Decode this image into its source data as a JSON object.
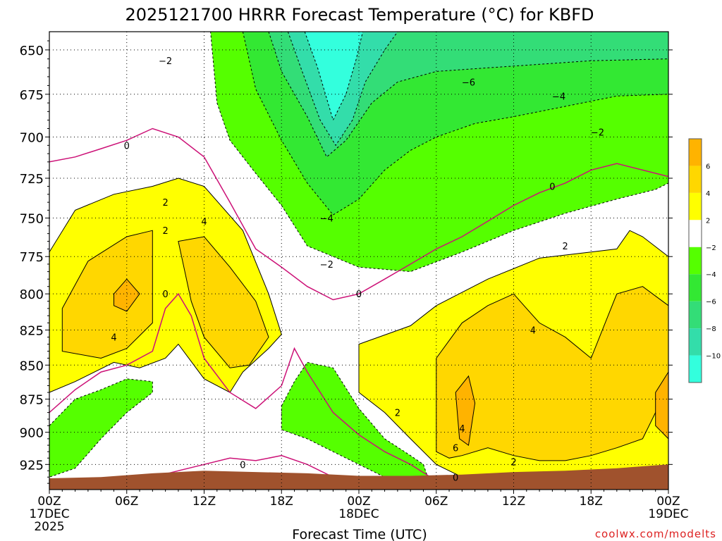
{
  "chart_data": {
    "type": "heatmap",
    "title": "2025121700 HRRR Forecast Temperature (°C) for KBFD",
    "xlabel": "Forecast Time (UTC)",
    "ylabel": "",
    "credit": "coolwx.com/modelts",
    "y_axis": {
      "scale": "log-pressure",
      "inverted": true,
      "ticks": [
        650,
        675,
        700,
        725,
        750,
        775,
        800,
        825,
        850,
        875,
        900,
        925
      ],
      "ylim": [
        640,
        945
      ]
    },
    "x_axis": {
      "xlim_hours": [
        0,
        48
      ],
      "ticks": [
        {
          "hour": 0,
          "label": "00Z",
          "sub1": "17DEC",
          "sub2": "2025"
        },
        {
          "hour": 6,
          "label": "06Z",
          "sub1": "",
          "sub2": ""
        },
        {
          "hour": 12,
          "label": "12Z",
          "sub1": "",
          "sub2": ""
        },
        {
          "hour": 18,
          "label": "18Z",
          "sub1": "",
          "sub2": ""
        },
        {
          "hour": 24,
          "label": "00Z",
          "sub1": "18DEC",
          "sub2": ""
        },
        {
          "hour": 30,
          "label": "06Z",
          "sub1": "",
          "sub2": ""
        },
        {
          "hour": 36,
          "label": "12Z",
          "sub1": "",
          "sub2": ""
        },
        {
          "hour": 42,
          "label": "18Z",
          "sub1": "",
          "sub2": ""
        },
        {
          "hour": 48,
          "label": "00Z",
          "sub1": "19DEC",
          "sub2": ""
        }
      ]
    },
    "grid": true,
    "legend": {
      "placement": "right",
      "labels": [
        "6",
        "4",
        "2",
        "−2",
        "−4",
        "−6",
        "−8",
        "−10"
      ],
      "bins": [
        {
          "range": [
            6,
            8
          ],
          "color": "#ffb300"
        },
        {
          "range": [
            4,
            6
          ],
          "color": "#ffd700"
        },
        {
          "range": [
            2,
            4
          ],
          "color": "#ffff00"
        },
        {
          "range": [
            -2,
            2
          ],
          "color": "#ffffff"
        },
        {
          "range": [
            -4,
            -2
          ],
          "color": "#55ff00"
        },
        {
          "range": [
            -6,
            -4
          ],
          "color": "#33e833"
        },
        {
          "range": [
            -8,
            -6
          ],
          "color": "#33dd77"
        },
        {
          "range": [
            -10,
            -8
          ],
          "color": "#33ddaa"
        },
        {
          "range": [
            -12,
            -10
          ],
          "color": "#33ffdd"
        }
      ]
    },
    "ground_color": "#a0522d",
    "regions": [
      {
        "level": -2,
        "color": "#55ff00",
        "points": [
          [
            0.0,
            640
          ],
          [
            12.5,
            640
          ],
          [
            13,
            680
          ],
          [
            14,
            702
          ],
          [
            16,
            722
          ],
          [
            18,
            742
          ],
          [
            20,
            768
          ],
          [
            24,
            782
          ],
          [
            28,
            785
          ],
          [
            32,
            772
          ],
          [
            36,
            758
          ],
          [
            40,
            747
          ],
          [
            44,
            738
          ],
          [
            47,
            732
          ],
          [
            48,
            728
          ],
          [
            48,
            640
          ]
        ]
      },
      {
        "level": -4,
        "color": "#33e833",
        "points": [
          [
            15,
            640
          ],
          [
            16,
            672
          ],
          [
            18,
            702
          ],
          [
            20,
            728
          ],
          [
            22,
            748
          ],
          [
            24,
            738
          ],
          [
            26,
            720
          ],
          [
            28,
            708
          ],
          [
            30,
            700
          ],
          [
            33,
            692
          ],
          [
            36,
            688
          ],
          [
            40,
            682
          ],
          [
            44,
            676
          ],
          [
            48,
            675
          ],
          [
            48,
            640
          ]
        ]
      },
      {
        "level": -6,
        "color": "#33dd77",
        "points": [
          [
            17,
            640
          ],
          [
            18,
            662
          ],
          [
            20,
            688
          ],
          [
            21.5,
            712
          ],
          [
            23,
            702
          ],
          [
            25,
            680
          ],
          [
            27,
            668
          ],
          [
            30,
            662
          ],
          [
            34,
            660
          ],
          [
            38,
            658
          ],
          [
            42,
            656
          ],
          [
            48,
            655
          ],
          [
            48,
            640
          ]
        ]
      },
      {
        "level": -8,
        "color": "#33ddaa",
        "points": [
          [
            18.5,
            640
          ],
          [
            19.5,
            660
          ],
          [
            21,
            690
          ],
          [
            22.2,
            705
          ],
          [
            23.5,
            690
          ],
          [
            24.5,
            668
          ],
          [
            26,
            650
          ],
          [
            27,
            640
          ]
        ]
      },
      {
        "level": -10,
        "color": "#33ffdd",
        "points": [
          [
            19.8,
            640
          ],
          [
            20.8,
            660
          ],
          [
            22,
            690
          ],
          [
            23,
            675
          ],
          [
            23.8,
            655
          ],
          [
            24.3,
            640
          ]
        ]
      },
      {
        "level": 2,
        "color": "#ffff00",
        "points": [
          [
            0,
            772
          ],
          [
            2,
            745
          ],
          [
            5,
            735
          ],
          [
            8,
            730
          ],
          [
            10,
            725
          ],
          [
            12,
            730
          ],
          [
            15,
            758
          ],
          [
            17,
            800
          ],
          [
            18,
            828
          ],
          [
            17,
            838
          ],
          [
            15,
            855
          ],
          [
            14,
            870
          ],
          [
            12,
            860
          ],
          [
            10,
            835
          ],
          [
            9,
            845
          ],
          [
            7,
            852
          ],
          [
            5,
            848
          ],
          [
            2,
            862
          ],
          [
            0,
            870
          ]
        ]
      },
      {
        "level": 4,
        "color": "#ffd700",
        "points": [
          [
            1,
            810
          ],
          [
            3,
            778
          ],
          [
            6,
            762
          ],
          [
            8,
            758
          ],
          [
            8,
            820
          ],
          [
            6,
            838
          ],
          [
            4,
            845
          ],
          [
            1,
            840
          ]
        ]
      },
      {
        "level": 4,
        "color": "#ffd700",
        "points": [
          [
            10,
            765
          ],
          [
            12,
            762
          ],
          [
            14,
            782
          ],
          [
            16,
            805
          ],
          [
            17,
            830
          ],
          [
            15.5,
            850
          ],
          [
            14,
            852
          ],
          [
            12,
            830
          ],
          [
            11,
            805
          ]
        ]
      },
      {
        "level": 6,
        "color": "#ffb300",
        "points": [
          [
            5,
            800
          ],
          [
            6,
            790
          ],
          [
            7,
            800
          ],
          [
            6,
            812
          ],
          [
            5,
            808
          ]
        ]
      },
      {
        "level": 2,
        "color": "#ffff00",
        "points": [
          [
            24,
            835
          ],
          [
            28,
            822
          ],
          [
            30,
            808
          ],
          [
            34,
            790
          ],
          [
            38,
            776
          ],
          [
            42,
            772
          ],
          [
            44,
            770
          ],
          [
            45,
            758
          ],
          [
            46,
            762
          ],
          [
            48,
            775
          ],
          [
            48,
            945
          ],
          [
            44,
            945
          ],
          [
            40,
            940
          ],
          [
            36,
            938
          ],
          [
            32,
            935
          ],
          [
            30,
            925
          ],
          [
            28,
            905
          ],
          [
            26,
            885
          ],
          [
            24,
            870
          ]
        ]
      },
      {
        "level": 4,
        "color": "#ffd700",
        "points": [
          [
            30,
            845
          ],
          [
            32,
            820
          ],
          [
            34,
            808
          ],
          [
            36,
            800
          ],
          [
            37,
            810
          ],
          [
            38,
            820
          ],
          [
            40,
            830
          ],
          [
            42,
            845
          ],
          [
            44,
            800
          ],
          [
            46,
            795
          ],
          [
            48,
            808
          ],
          [
            48,
            870
          ],
          [
            47,
            885
          ],
          [
            46,
            905
          ],
          [
            44,
            912
          ],
          [
            42,
            918
          ],
          [
            40,
            922
          ],
          [
            38,
            922
          ],
          [
            36,
            918
          ],
          [
            34,
            912
          ],
          [
            32,
            918
          ],
          [
            31,
            920
          ],
          [
            30,
            915
          ]
        ]
      },
      {
        "level": 6,
        "color": "#ffb300",
        "points": [
          [
            31.5,
            870
          ],
          [
            32.5,
            858
          ],
          [
            33,
            878
          ],
          [
            32.5,
            910
          ],
          [
            31.8,
            905
          ]
        ]
      },
      {
        "level": 6,
        "color": "#ffb300",
        "points": [
          [
            47,
            870
          ],
          [
            48,
            855
          ],
          [
            48,
            905
          ],
          [
            47,
            895
          ]
        ]
      },
      {
        "level": 6,
        "color": "#ffb300",
        "points": [
          [
            41,
            940
          ],
          [
            42.5,
            932
          ],
          [
            43.5,
            940
          ]
        ]
      },
      {
        "level": -2,
        "color": "#55ff00",
        "points": [
          [
            0,
            895
          ],
          [
            2,
            875
          ],
          [
            4,
            868
          ],
          [
            6,
            860
          ],
          [
            8,
            862
          ],
          [
            8,
            870
          ],
          [
            6,
            885
          ],
          [
            4,
            905
          ],
          [
            2,
            928
          ],
          [
            0,
            935
          ]
        ]
      },
      {
        "level": -2,
        "color": "#55ff00",
        "points": [
          [
            18,
            880
          ],
          [
            19,
            862
          ],
          [
            20,
            848
          ],
          [
            22,
            852
          ],
          [
            24,
            882
          ],
          [
            26,
            905
          ],
          [
            28,
            918
          ],
          [
            29,
            925
          ],
          [
            29.5,
            940
          ],
          [
            28,
            942
          ],
          [
            26,
            935
          ],
          [
            24,
            925
          ],
          [
            22,
            915
          ],
          [
            20,
            905
          ],
          [
            18,
            898
          ]
        ]
      }
    ],
    "contours": [
      {
        "value": 0,
        "color": "#cc1177",
        "points": [
          [
            0,
            715
          ],
          [
            2,
            712
          ],
          [
            4,
            707
          ],
          [
            6,
            702
          ],
          [
            8,
            695
          ],
          [
            10,
            700
          ],
          [
            12,
            712
          ],
          [
            14,
            740
          ],
          [
            16,
            770
          ],
          [
            18,
            782
          ],
          [
            20,
            795
          ],
          [
            22,
            804
          ],
          [
            24,
            800
          ],
          [
            26,
            790
          ],
          [
            28,
            780
          ],
          [
            30,
            770
          ],
          [
            32,
            762
          ],
          [
            34,
            752
          ],
          [
            36,
            742
          ],
          [
            38,
            734
          ],
          [
            40,
            728
          ],
          [
            42,
            720
          ],
          [
            44,
            716
          ],
          [
            46,
            720
          ],
          [
            48,
            724
          ]
        ]
      },
      {
        "value": 0,
        "color": "#cc1177",
        "points": [
          [
            0,
            885
          ],
          [
            2,
            868
          ],
          [
            4,
            855
          ],
          [
            6,
            850
          ],
          [
            8,
            840
          ],
          [
            9,
            810
          ],
          [
            10,
            800
          ],
          [
            11,
            815
          ],
          [
            12,
            845
          ],
          [
            14,
            870
          ],
          [
            16,
            882
          ],
          [
            18,
            865
          ],
          [
            19,
            838
          ],
          [
            20,
            855
          ],
          [
            22,
            885
          ],
          [
            24,
            902
          ],
          [
            26,
            915
          ],
          [
            28,
            925
          ],
          [
            30,
            938
          ],
          [
            32,
            942
          ]
        ]
      },
      {
        "value": 0,
        "color": "#cc1177",
        "points": [
          [
            8,
            935
          ],
          [
            10,
            930
          ],
          [
            12,
            925
          ],
          [
            14,
            920
          ],
          [
            16,
            922
          ],
          [
            18,
            918
          ],
          [
            20,
            925
          ],
          [
            22,
            935
          ]
        ]
      }
    ],
    "labels": [
      {
        "text": "−2",
        "x": 9,
        "y": 656
      },
      {
        "text": "−6",
        "x": 32.5,
        "y": 668
      },
      {
        "text": "−4",
        "x": 39.5,
        "y": 676
      },
      {
        "text": "−2",
        "x": 42.5,
        "y": 697
      },
      {
        "text": "0",
        "x": 6,
        "y": 705
      },
      {
        "text": "0",
        "x": 39,
        "y": 730
      },
      {
        "text": "−4",
        "x": 21.5,
        "y": 750
      },
      {
        "text": "2",
        "x": 9,
        "y": 740
      },
      {
        "text": "2",
        "x": 9,
        "y": 758
      },
      {
        "text": "4",
        "x": 12,
        "y": 752
      },
      {
        "text": "2",
        "x": 40,
        "y": 768
      },
      {
        "text": "−2",
        "x": 21.5,
        "y": 780
      },
      {
        "text": "0",
        "x": 9,
        "y": 800
      },
      {
        "text": "0",
        "x": 24,
        "y": 800
      },
      {
        "text": "4",
        "x": 5,
        "y": 830
      },
      {
        "text": "4",
        "x": 37.5,
        "y": 825
      },
      {
        "text": "2",
        "x": 27,
        "y": 885
      },
      {
        "text": "4",
        "x": 32,
        "y": 897
      },
      {
        "text": "6",
        "x": 31.5,
        "y": 912
      },
      {
        "text": "2",
        "x": 36,
        "y": 923
      },
      {
        "text": "0",
        "x": 15,
        "y": 925
      },
      {
        "text": "0",
        "x": 31.5,
        "y": 935
      }
    ]
  }
}
